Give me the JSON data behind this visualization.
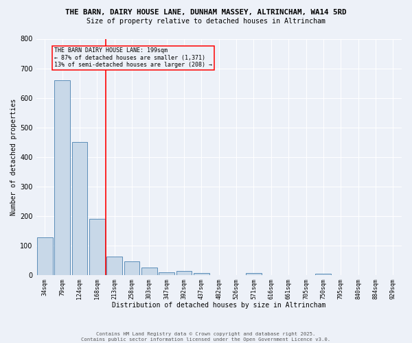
{
  "title1": "THE BARN, DAIRY HOUSE LANE, DUNHAM MASSEY, ALTRINCHAM, WA14 5RD",
  "title2": "Size of property relative to detached houses in Altrincham",
  "xlabel": "Distribution of detached houses by size in Altrincham",
  "ylabel": "Number of detached properties",
  "categories": [
    "34sqm",
    "79sqm",
    "124sqm",
    "168sqm",
    "213sqm",
    "258sqm",
    "303sqm",
    "347sqm",
    "392sqm",
    "437sqm",
    "482sqm",
    "526sqm",
    "571sqm",
    "616sqm",
    "661sqm",
    "705sqm",
    "750sqm",
    "795sqm",
    "840sqm",
    "884sqm",
    "929sqm"
  ],
  "values": [
    127,
    660,
    450,
    190,
    63,
    47,
    26,
    10,
    13,
    8,
    0,
    0,
    7,
    0,
    0,
    0,
    5,
    0,
    0,
    0,
    0
  ],
  "bar_color": "#c8d8e8",
  "bar_edge_color": "#5b8db8",
  "annotation_title": "THE BARN DAIRY HOUSE LANE: 199sqm",
  "annotation_line1": "← 87% of detached houses are smaller (1,371)",
  "annotation_line2": "13% of semi-detached houses are larger (208) →",
  "ylim": [
    0,
    800
  ],
  "yticks": [
    0,
    100,
    200,
    300,
    400,
    500,
    600,
    700,
    800
  ],
  "footer1": "Contains HM Land Registry data © Crown copyright and database right 2025.",
  "footer2": "Contains public sector information licensed under the Open Government Licence v3.0.",
  "bg_color": "#edf1f8",
  "grid_color": "#ffffff"
}
